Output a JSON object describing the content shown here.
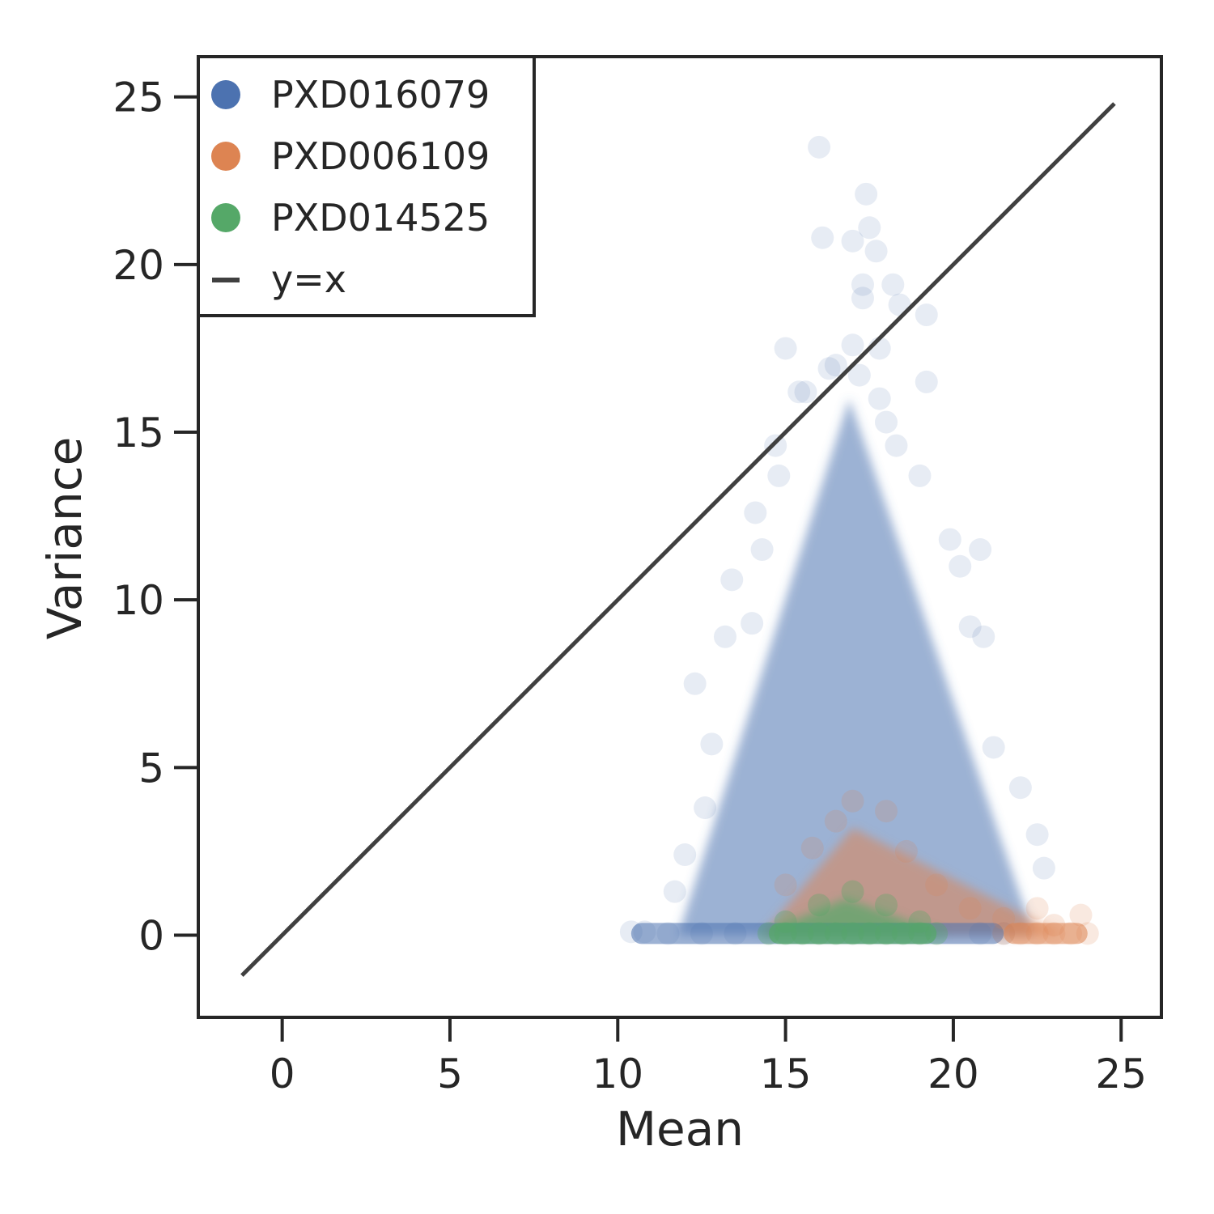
{
  "chart_data": {
    "type": "scatter",
    "xlabel": "Mean",
    "ylabel": "Variance",
    "xlim": [
      -2.5,
      26.2
    ],
    "ylim": [
      -2.45,
      26.2
    ],
    "xticks": [
      "0",
      "5",
      "10",
      "15",
      "20",
      "25"
    ],
    "yticks": [
      "0",
      "5",
      "10",
      "15",
      "20",
      "25"
    ],
    "legend_position": "top-left",
    "series": [
      {
        "name": "PXD016079",
        "color": "#4c72b0",
        "opacity": 0.06,
        "marker": "circle",
        "points": [
          [
            16.0,
            23.5
          ],
          [
            17.4,
            22.1
          ],
          [
            17.5,
            21.1
          ],
          [
            16.1,
            20.8
          ],
          [
            17.0,
            20.7
          ],
          [
            17.7,
            20.4
          ],
          [
            17.3,
            19.4
          ],
          [
            18.2,
            19.4
          ],
          [
            17.3,
            19.0
          ],
          [
            18.4,
            18.8
          ],
          [
            19.2,
            18.5
          ],
          [
            17.0,
            17.6
          ],
          [
            17.8,
            17.5
          ],
          [
            15.0,
            17.5
          ],
          [
            16.5,
            17.0
          ],
          [
            19.2,
            16.5
          ],
          [
            16.3,
            16.9
          ],
          [
            17.2,
            16.7
          ],
          [
            15.4,
            16.2
          ],
          [
            15.6,
            16.2
          ],
          [
            17.8,
            16.0
          ],
          [
            18.0,
            15.3
          ],
          [
            14.7,
            14.6
          ],
          [
            18.3,
            14.6
          ],
          [
            14.8,
            13.7
          ],
          [
            19.0,
            13.7
          ],
          [
            14.1,
            12.6
          ],
          [
            19.9,
            11.8
          ],
          [
            14.3,
            11.5
          ],
          [
            20.2,
            11.0
          ],
          [
            20.8,
            11.5
          ],
          [
            13.4,
            10.6
          ],
          [
            14.0,
            9.3
          ],
          [
            20.5,
            9.2
          ],
          [
            13.2,
            8.9
          ],
          [
            20.9,
            8.9
          ],
          [
            12.3,
            7.5
          ],
          [
            21.2,
            5.6
          ],
          [
            12.8,
            5.7
          ],
          [
            22.0,
            4.4
          ],
          [
            12.6,
            3.8
          ],
          [
            22.5,
            3.0
          ],
          [
            12.0,
            2.4
          ],
          [
            22.7,
            2.0
          ],
          [
            11.7,
            1.3
          ],
          [
            10.4,
            0.1
          ],
          [
            10.8,
            0.1
          ],
          [
            11.5,
            0.05
          ],
          [
            12.5,
            0.05
          ],
          [
            13.5,
            0.05
          ],
          [
            20.8,
            0.05
          ],
          [
            21.5,
            0.05
          ]
        ]
      },
      {
        "name": "PXD006109",
        "color": "#dd8452",
        "opacity": 0.08,
        "marker": "circle",
        "points": [
          [
            17.0,
            4.0
          ],
          [
            16.5,
            3.4
          ],
          [
            18.0,
            3.7
          ],
          [
            15.8,
            2.6
          ],
          [
            18.6,
            2.5
          ],
          [
            15.0,
            1.5
          ],
          [
            19.5,
            1.5
          ],
          [
            20.5,
            0.8
          ],
          [
            21.5,
            0.5
          ],
          [
            22.5,
            0.8
          ],
          [
            23.0,
            0.3
          ],
          [
            23.8,
            0.6
          ],
          [
            24.0,
            0.05
          ],
          [
            23.5,
            0.05
          ],
          [
            23.0,
            0.05
          ],
          [
            22.5,
            0.05
          ],
          [
            22.0,
            0.05
          ],
          [
            21.5,
            0.05
          ]
        ]
      },
      {
        "name": "PXD014525",
        "color": "#55a868",
        "opacity": 0.15,
        "marker": "circle",
        "points": [
          [
            17.0,
            1.3
          ],
          [
            16.0,
            0.9
          ],
          [
            18.0,
            0.9
          ],
          [
            15.0,
            0.4
          ],
          [
            19.0,
            0.4
          ],
          [
            14.5,
            0.05
          ],
          [
            15.0,
            0.05
          ],
          [
            15.5,
            0.05
          ],
          [
            16.0,
            0.05
          ],
          [
            16.5,
            0.05
          ],
          [
            17.0,
            0.05
          ],
          [
            17.5,
            0.05
          ],
          [
            18.0,
            0.05
          ],
          [
            18.5,
            0.05
          ],
          [
            19.0,
            0.05
          ],
          [
            19.5,
            0.05
          ]
        ]
      },
      {
        "name": "y=x",
        "type": "line",
        "color": "#404040",
        "points": [
          [
            -1.2,
            -1.2
          ],
          [
            24.8,
            24.8
          ]
        ]
      }
    ],
    "density_clouds": [
      {
        "series": "PXD016079",
        "description_values": {
          "apex": [
            16.9,
            16.0
          ],
          "base_left": [
            11.8,
            0.0
          ],
          "base_right": [
            22.4,
            0.0
          ]
        }
      },
      {
        "series": "PXD006109",
        "description_values": {
          "apex": [
            17.0,
            3.2
          ],
          "base_left": [
            14.3,
            0.0
          ],
          "base_right": [
            23.3,
            0.0
          ]
        }
      },
      {
        "series": "PXD014525",
        "description_values": {
          "apex": [
            16.8,
            1.1
          ],
          "base_left": [
            14.2,
            0.0
          ],
          "base_right": [
            19.8,
            0.0
          ]
        }
      }
    ]
  }
}
